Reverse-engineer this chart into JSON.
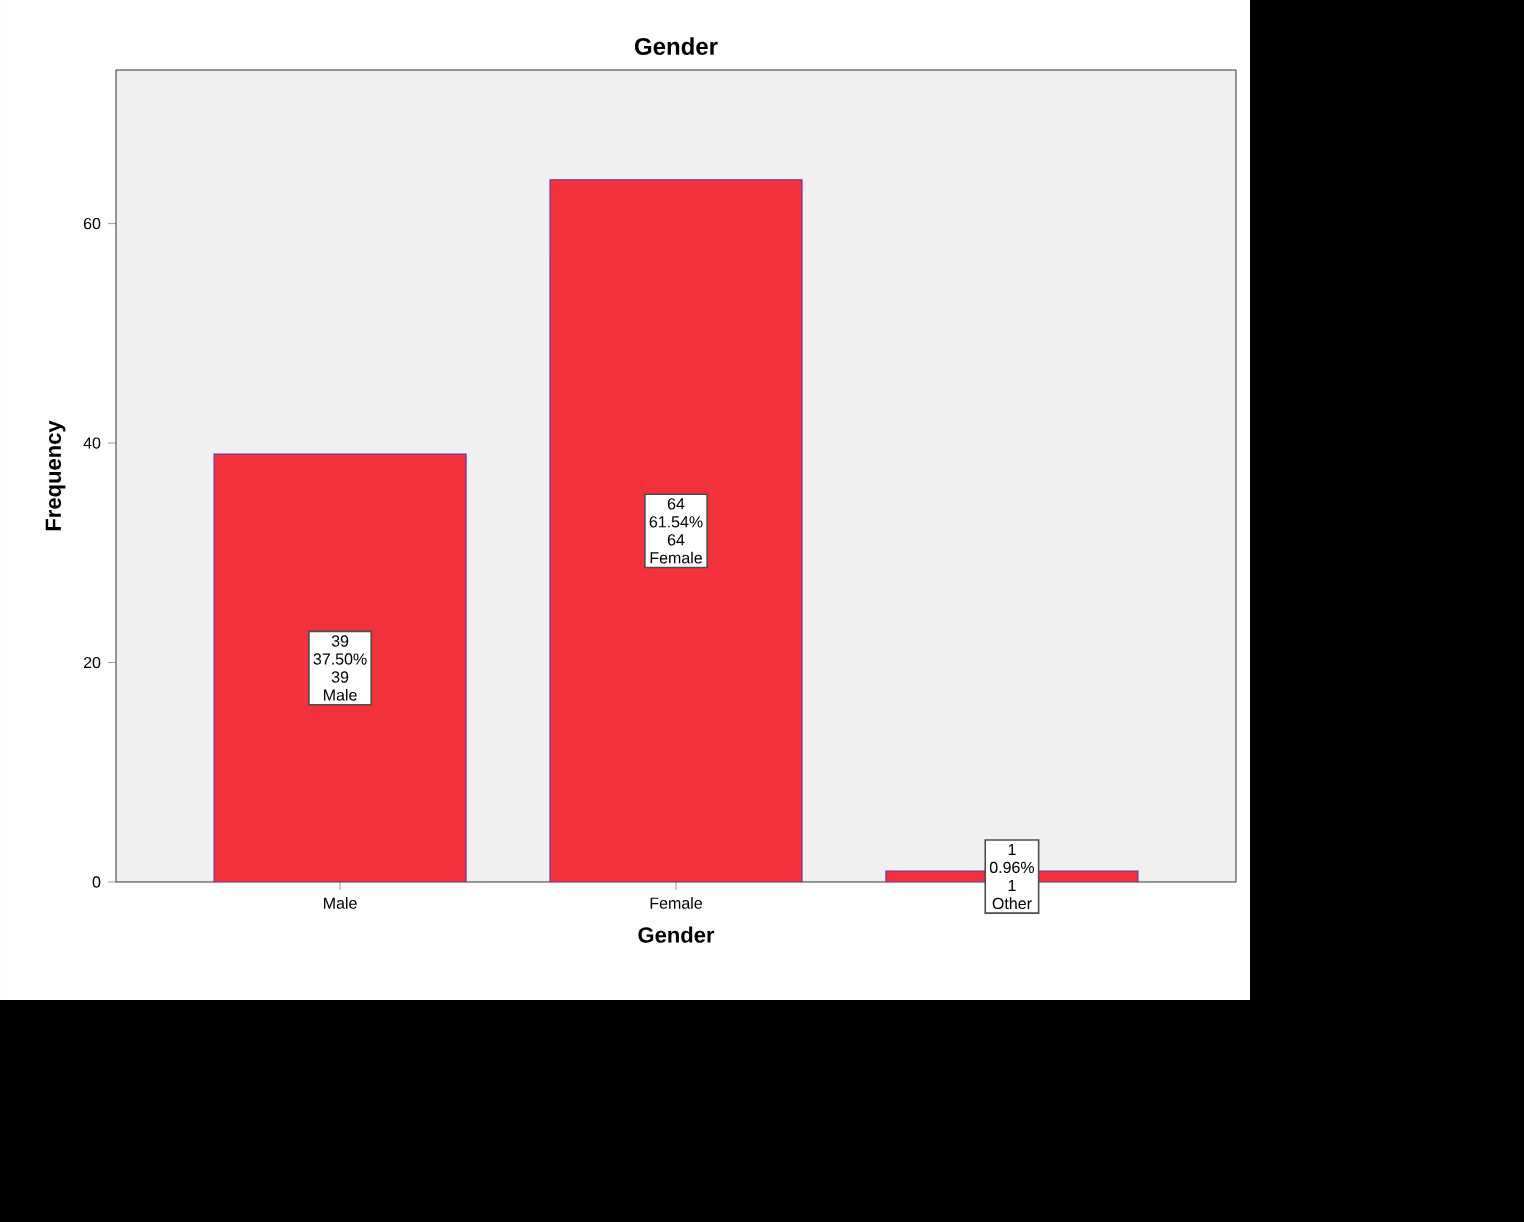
{
  "chart_data": {
    "type": "bar",
    "title": "Gender",
    "xlabel": "Gender",
    "ylabel": "Frequency",
    "categories": [
      "Male",
      "Female",
      null
    ],
    "values": [
      39,
      64,
      1
    ],
    "color": "#f2333b",
    "value_labels": [
      "39 37.50% 39 Male",
      "64 61.54% 64 Female",
      "1 0.96% 1 Other"
    ],
    "ylim": [
      0,
      74
    ],
    "yticks": [
      0,
      20,
      40,
      60
    ]
  }
}
